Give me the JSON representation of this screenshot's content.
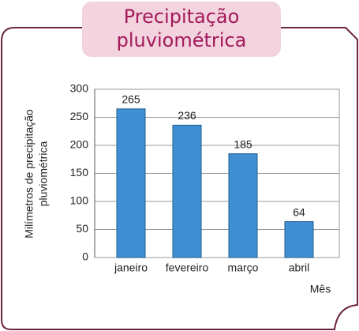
{
  "chart_data": {
    "type": "bar",
    "title": [
      "Precipitação",
      "pluviométrica"
    ],
    "y_label": [
      "Milímetros de precipitação",
      "pluviométrica"
    ],
    "x_label": "Mês",
    "categories": [
      "janeiro",
      "fevereiro",
      "março",
      "abril"
    ],
    "values": [
      265,
      236,
      185,
      64
    ],
    "color": "#3f8fd2",
    "ylim": [
      0,
      300
    ],
    "yticks": [
      0,
      50,
      100,
      150,
      200,
      250,
      300
    ],
    "grid": true
  }
}
